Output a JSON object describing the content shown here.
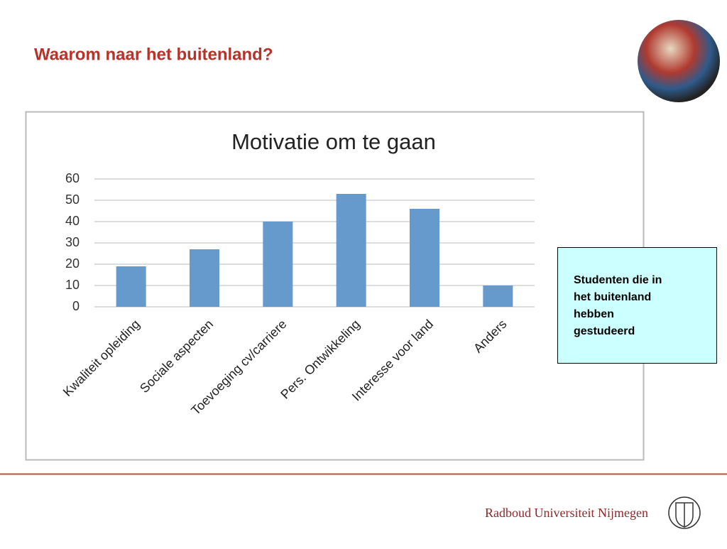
{
  "slide_title": "Waarom naar het buitenland?",
  "chart_data": {
    "type": "bar",
    "title": "Motivatie om te gaan",
    "categories": [
      "Kwaliteit opleiding",
      "Sociale aspecten",
      "Toevoeging cv/carriere",
      "Pers. Ontwikkeling",
      "Interesse voor land",
      "Anders"
    ],
    "values": [
      19,
      27,
      40,
      53,
      46,
      10
    ],
    "color": "#6699cc",
    "ylim": [
      0,
      60
    ],
    "yticks": [
      0,
      10,
      20,
      30,
      40,
      50,
      60
    ],
    "grid": true
  },
  "note": {
    "lines": [
      "Studenten die in",
      "het buitenland",
      "hebben",
      "gestudeerd"
    ]
  },
  "footer": "Radboud Universiteit Nijmegen"
}
